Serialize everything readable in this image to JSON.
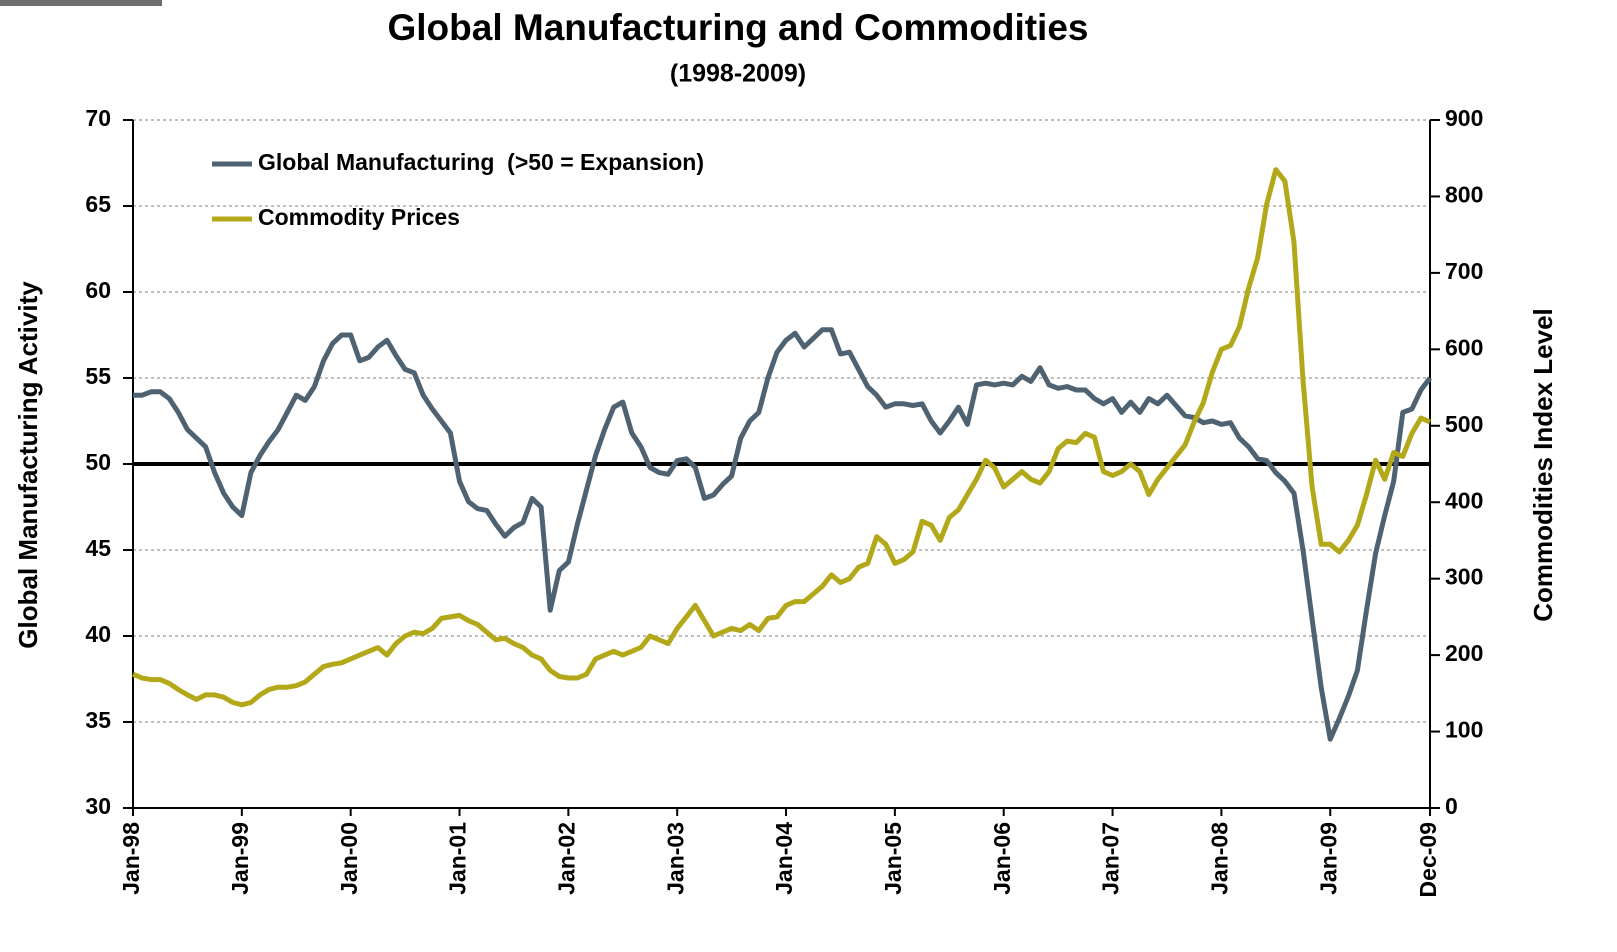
{
  "chart_data": {
    "type": "line",
    "title": "Global Manufacturing and Commodities",
    "subtitle": "(1998-2009)",
    "y_label": "Global Manufacturing Activity",
    "y2_label": "Commodities Index Level",
    "categories": [
      "Jan-98",
      null,
      null,
      null,
      null,
      null,
      null,
      null,
      null,
      null,
      null,
      null,
      "Jan-99",
      null,
      null,
      null,
      null,
      null,
      null,
      null,
      null,
      null,
      null,
      null,
      "Jan-00",
      null,
      null,
      null,
      null,
      null,
      null,
      null,
      null,
      null,
      null,
      null,
      "Jan-01",
      null,
      null,
      null,
      null,
      null,
      null,
      null,
      null,
      null,
      null,
      null,
      "Jan-02",
      null,
      null,
      null,
      null,
      null,
      null,
      null,
      null,
      null,
      null,
      null,
      "Jan-03",
      null,
      null,
      null,
      null,
      null,
      null,
      null,
      null,
      null,
      null,
      null,
      "Jan-04",
      null,
      null,
      null,
      null,
      null,
      null,
      null,
      null,
      null,
      null,
      null,
      "Jan-05",
      null,
      null,
      null,
      null,
      null,
      null,
      null,
      null,
      null,
      null,
      null,
      "Jan-06",
      null,
      null,
      null,
      null,
      null,
      null,
      null,
      null,
      null,
      null,
      null,
      "Jan-07",
      null,
      null,
      null,
      null,
      null,
      null,
      null,
      null,
      null,
      null,
      null,
      "Jan-08",
      null,
      null,
      null,
      null,
      null,
      null,
      null,
      null,
      null,
      null,
      null,
      "Jan-09",
      null,
      null,
      null,
      null,
      null,
      null,
      null,
      null,
      null,
      null,
      "Dec-09"
    ],
    "series": [
      {
        "name": "Global Manufacturing  (>50 = Expansion)",
        "color": "#4f6272",
        "axis": "y",
        "values": [
          54.0,
          54.0,
          54.2,
          54.2,
          53.8,
          53.0,
          52.0,
          51.5,
          51.0,
          49.5,
          48.3,
          47.5,
          47.0,
          49.5,
          50.5,
          51.3,
          52.0,
          53.0,
          54.0,
          53.7,
          54.5,
          56.0,
          57.0,
          57.5,
          57.5,
          56.0,
          56.2,
          56.8,
          57.2,
          56.3,
          55.5,
          55.3,
          54.0,
          53.2,
          52.5,
          51.8,
          49.0,
          47.8,
          47.4,
          47.3,
          46.5,
          45.8,
          46.3,
          46.6,
          48.0,
          47.5,
          41.5,
          43.8,
          44.3,
          46.5,
          48.5,
          50.5,
          52.0,
          53.3,
          53.6,
          51.8,
          51.0,
          49.8,
          49.5,
          49.4,
          50.2,
          50.3,
          49.8,
          48.0,
          48.2,
          48.8,
          49.3,
          51.5,
          52.5,
          53.0,
          55.0,
          56.5,
          57.2,
          57.6,
          56.8,
          57.3,
          57.8,
          57.8,
          56.4,
          56.5,
          55.5,
          54.5,
          54.0,
          53.3,
          53.5,
          53.5,
          53.4,
          53.5,
          52.5,
          51.8,
          52.5,
          53.3,
          52.3,
          54.6,
          54.7,
          54.6,
          54.7,
          54.6,
          55.1,
          54.8,
          55.6,
          54.6,
          54.4,
          54.5,
          54.3,
          54.3,
          53.8,
          53.5,
          53.8,
          53.0,
          53.6,
          53.0,
          53.8,
          53.5,
          54.0,
          53.4,
          52.8,
          52.7,
          52.4,
          52.5,
          52.3,
          52.4,
          51.5,
          51.0,
          50.3,
          50.2,
          49.5,
          49.0,
          48.3,
          45.0,
          41.0,
          37.0,
          34.0,
          35.2,
          36.5,
          38.0,
          41.5,
          44.8,
          47.0,
          49.0,
          53.0,
          53.2,
          54.3,
          55.0
        ]
      },
      {
        "name": "Commodity Prices",
        "color": "#b3a81a",
        "axis": "y2",
        "values": [
          175,
          170,
          168,
          168,
          163,
          155,
          148,
          142,
          148,
          148,
          145,
          138,
          135,
          138,
          148,
          155,
          158,
          158,
          160,
          165,
          175,
          185,
          188,
          190,
          195,
          200,
          205,
          210,
          200,
          215,
          225,
          230,
          228,
          235,
          248,
          250,
          252,
          245,
          240,
          230,
          220,
          222,
          215,
          210,
          200,
          195,
          180,
          172,
          170,
          170,
          175,
          195,
          200,
          205,
          200,
          205,
          210,
          225,
          220,
          215,
          235,
          250,
          265,
          245,
          225,
          230,
          235,
          232,
          240,
          232,
          248,
          250,
          265,
          270,
          270,
          280,
          290,
          305,
          295,
          300,
          315,
          320,
          355,
          345,
          320,
          325,
          335,
          375,
          370,
          350,
          380,
          390,
          410,
          430,
          455,
          445,
          420,
          430,
          440,
          430,
          425,
          440,
          470,
          480,
          478,
          490,
          485,
          440,
          435,
          440,
          450,
          440,
          410,
          430,
          445,
          460,
          475,
          505,
          530,
          570,
          600,
          605,
          630,
          680,
          720,
          790,
          835,
          820,
          740,
          560,
          420,
          345,
          345,
          335,
          350,
          370,
          410,
          455,
          430,
          465,
          460,
          490,
          510,
          505
        ]
      }
    ],
    "ylim": [
      30,
      70
    ],
    "yticks": [
      30,
      35,
      40,
      45,
      50,
      55,
      60,
      65,
      70
    ],
    "y2lim": [
      0,
      900
    ],
    "y2ticks": [
      0,
      100,
      200,
      300,
      400,
      500,
      600,
      700,
      800,
      900
    ],
    "reference_line": 50,
    "grid": true,
    "legend": "upper left"
  }
}
